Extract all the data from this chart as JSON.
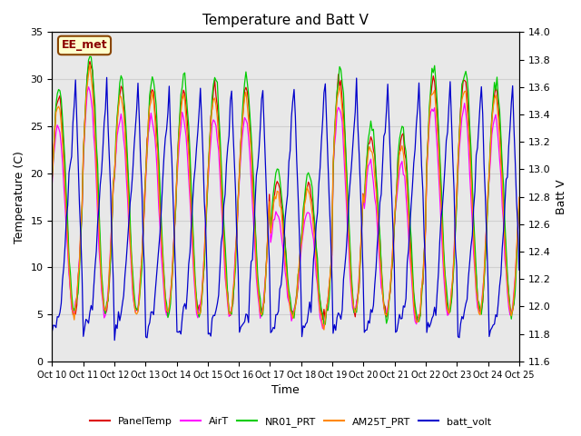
{
  "title": "Temperature and Batt V",
  "xlabel": "Time",
  "ylabel_left": "Temperature (C)",
  "ylabel_right": "Batt V",
  "annotation": "EE_met",
  "ylim_left": [
    0,
    35
  ],
  "ylim_right": [
    11.6,
    14.0
  ],
  "yticks_left": [
    0,
    5,
    10,
    15,
    20,
    25,
    30,
    35
  ],
  "yticks_right": [
    11.6,
    11.8,
    12.0,
    12.2,
    12.4,
    12.6,
    12.8,
    13.0,
    13.2,
    13.4,
    13.6,
    13.8,
    14.0
  ],
  "background_color": "#ffffff",
  "plot_bg_color": "#e8e8e8",
  "grid_color": "#d0d0d0",
  "series_colors": {
    "PanelTemp": "#dd0000",
    "AirT": "#ff00ff",
    "NR01_PRT": "#00cc00",
    "AM25T_PRT": "#ff8800",
    "batt_volt": "#0000cc"
  },
  "legend_labels": [
    "PanelTemp",
    "AirT",
    "NR01_PRT",
    "AM25T_PRT",
    "batt_volt"
  ],
  "xtick_labels": [
    "Oct 10",
    "Oct 11",
    "Oct 12",
    "Oct 13",
    "Oct 14",
    "Oct 15",
    "Oct 16",
    "Oct 17",
    "Oct 18",
    "Oct 19",
    "Oct 20",
    "Oct 21",
    "Oct 22",
    "Oct 23",
    "Oct 24",
    "Oct 25"
  ]
}
